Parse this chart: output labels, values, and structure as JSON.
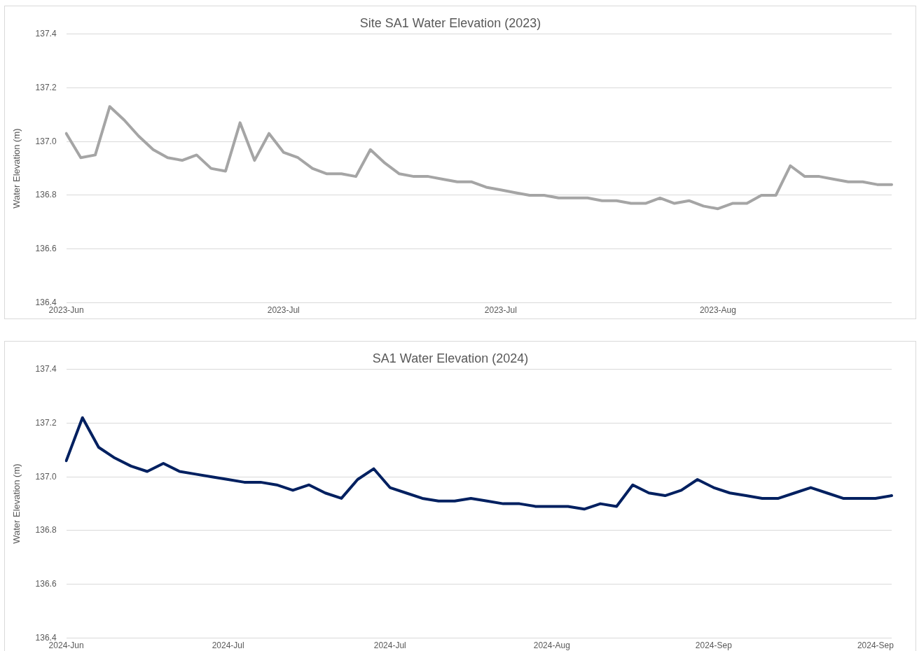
{
  "chart_data": [
    {
      "type": "line",
      "title": "Site SA1 Water Elevation (2023)",
      "ylabel": "Water Elevation (m)",
      "categories": [
        "2023-Jun",
        null,
        null,
        null,
        null,
        null,
        null,
        null,
        null,
        null,
        null,
        null,
        null,
        null,
        null,
        "2023-Jul",
        null,
        null,
        null,
        null,
        null,
        null,
        null,
        null,
        null,
        null,
        null,
        null,
        null,
        null,
        "2023-Jul",
        null,
        null,
        null,
        null,
        null,
        null,
        null,
        null,
        null,
        null,
        null,
        null,
        null,
        null,
        "2023-Aug",
        null,
        null,
        null,
        null,
        null,
        null,
        null,
        null,
        null,
        null,
        null,
        null
      ],
      "series": [
        {
          "color": "#a5a5a5",
          "values": [
            137.03,
            136.94,
            136.95,
            137.13,
            137.08,
            137.02,
            136.97,
            136.94,
            136.93,
            136.95,
            136.9,
            136.89,
            137.07,
            136.93,
            137.03,
            136.96,
            136.94,
            136.9,
            136.88,
            136.88,
            136.87,
            136.97,
            136.92,
            136.88,
            136.87,
            136.87,
            136.86,
            136.85,
            136.85,
            136.83,
            136.82,
            136.81,
            136.8,
            136.8,
            136.79,
            136.79,
            136.79,
            136.78,
            136.78,
            136.77,
            136.77,
            136.79,
            136.77,
            136.78,
            136.76,
            136.75,
            136.77,
            136.77,
            136.8,
            136.8,
            136.91,
            136.87,
            136.87,
            136.86,
            136.85,
            136.85,
            136.84,
            136.84
          ]
        }
      ],
      "ylim": [
        136.4,
        137.4
      ],
      "yticks": [
        {
          "value": 136.4,
          "label": "136.4"
        },
        {
          "value": 136.6,
          "label": "136.6"
        },
        {
          "value": 136.8,
          "label": "136.8"
        },
        {
          "value": 137.0,
          "label": "137.0"
        },
        {
          "value": 137.2,
          "label": "137.2"
        },
        {
          "value": 137.4,
          "label": "137.4"
        }
      ],
      "grid": "y",
      "legend": false,
      "marker": "none",
      "line_style": "solid"
    },
    {
      "type": "line",
      "title": "SA1 Water Elevation (2024)",
      "ylabel": "Water Elevation (m)",
      "categories": [
        "2024-Jun",
        null,
        null,
        null,
        null,
        null,
        null,
        null,
        null,
        null,
        "2024-Jul",
        null,
        null,
        null,
        null,
        null,
        null,
        null,
        null,
        null,
        "2024-Jul",
        null,
        null,
        null,
        null,
        null,
        null,
        null,
        null,
        null,
        "2024-Aug",
        null,
        null,
        null,
        null,
        null,
        null,
        null,
        null,
        null,
        "2024-Sep",
        null,
        null,
        null,
        null,
        null,
        null,
        null,
        null,
        null,
        "2024-Sep",
        null
      ],
      "series": [
        {
          "color": "#002060",
          "values": [
            137.06,
            137.22,
            137.11,
            137.07,
            137.04,
            137.02,
            137.05,
            137.02,
            137.01,
            137.0,
            136.99,
            136.98,
            136.98,
            136.97,
            136.95,
            136.97,
            136.94,
            136.92,
            136.99,
            137.03,
            136.96,
            136.94,
            136.92,
            136.91,
            136.91,
            136.92,
            136.91,
            136.9,
            136.9,
            136.89,
            136.89,
            136.89,
            136.88,
            136.9,
            136.89,
            136.97,
            136.94,
            136.93,
            136.95,
            136.99,
            136.96,
            136.94,
            136.93,
            136.92,
            136.92,
            136.94,
            136.96,
            136.94,
            136.92,
            136.92,
            136.92,
            136.93
          ]
        }
      ],
      "ylim": [
        136.4,
        137.4
      ],
      "yticks": [
        {
          "value": 136.4,
          "label": "136.4"
        },
        {
          "value": 136.6,
          "label": "136.6"
        },
        {
          "value": 136.8,
          "label": "136.8"
        },
        {
          "value": 137.0,
          "label": "137.0"
        },
        {
          "value": 137.2,
          "label": "137.2"
        },
        {
          "value": 137.4,
          "label": "137.4"
        }
      ],
      "grid": "y",
      "legend": false,
      "marker": "none",
      "line_style": "solid"
    }
  ]
}
